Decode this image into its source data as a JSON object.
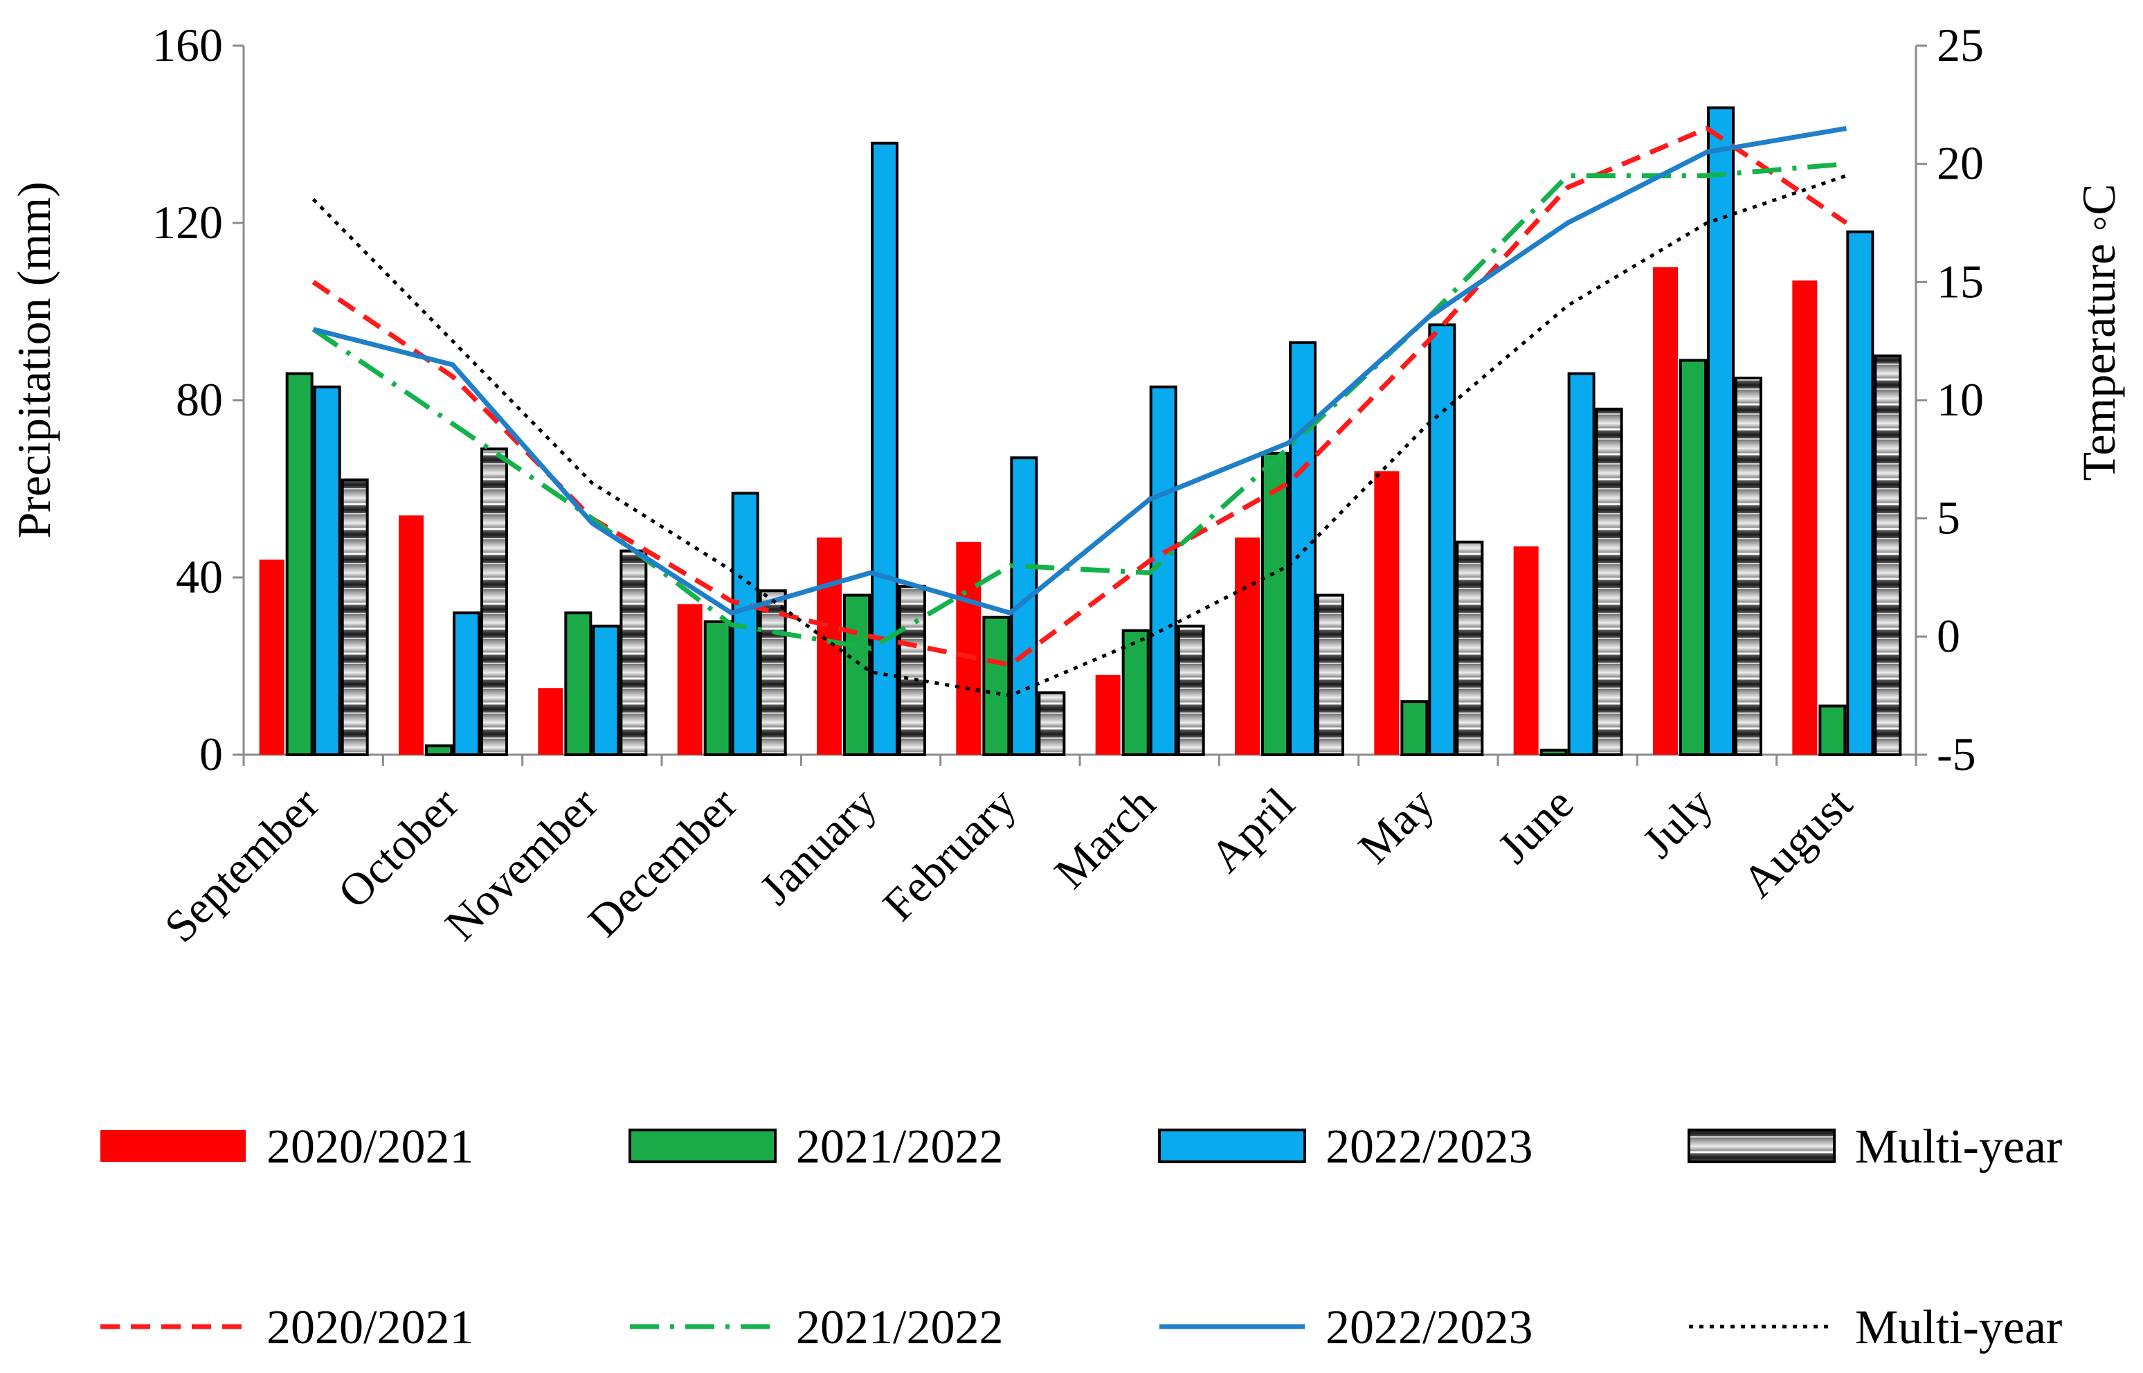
{
  "chart_data": {
    "type": "bar",
    "title": "",
    "xlabel": "",
    "categories": [
      "September",
      "October",
      "November",
      "December",
      "January",
      "February",
      "March",
      "April",
      "May",
      "June",
      "July",
      "August"
    ],
    "bar_axis": {
      "label": "Precipitation (mm)",
      "ylim": [
        0,
        160
      ],
      "ticks": [
        0,
        40,
        80,
        120,
        160
      ]
    },
    "line_axis": {
      "label": "Temperature ◦C",
      "ylim": [
        -5,
        25
      ],
      "ticks": [
        -5,
        0,
        5,
        10,
        15,
        20,
        25
      ]
    },
    "bar_series": [
      {
        "name": "2020/2021",
        "key": "b2020",
        "color": "#ff0000",
        "outlined": false,
        "pattern": false,
        "values": [
          44,
          54,
          15,
          34,
          49,
          48,
          18,
          49,
          64,
          47,
          110,
          107
        ]
      },
      {
        "name": "2021/2022",
        "key": "b2021",
        "color": "#1aab48",
        "outlined": true,
        "pattern": false,
        "values": [
          86,
          2,
          32,
          30,
          36,
          31,
          28,
          68,
          12,
          1,
          89,
          11
        ]
      },
      {
        "name": "2022/2023",
        "key": "b2022",
        "color": "#0aaaee",
        "outlined": true,
        "pattern": false,
        "values": [
          83,
          32,
          29,
          59,
          138,
          67,
          83,
          93,
          97,
          86,
          146,
          118
        ]
      },
      {
        "name": "Multi-year",
        "key": "bmulti",
        "color": "#9e9e9e",
        "outlined": true,
        "pattern": true,
        "values": [
          62,
          69,
          46,
          37,
          38,
          14,
          29,
          36,
          48,
          78,
          85,
          90
        ]
      }
    ],
    "line_series": [
      {
        "name": "2020/2021",
        "key": "l2020",
        "color": "#ff1a1a",
        "dash": "28,16",
        "values": [
          15.0,
          11.0,
          5.0,
          1.5,
          0.0,
          -1.2,
          3.2,
          6.5,
          12.5,
          19.0,
          21.5,
          17.5
        ]
      },
      {
        "name": "2021/2022",
        "key": "l2021",
        "color": "#13b24b",
        "dash": "42,16,6,16",
        "values": [
          13.0,
          9.0,
          5.0,
          0.5,
          -0.5,
          3.0,
          2.7,
          8.0,
          13.5,
          19.5,
          19.5,
          20.0
        ]
      },
      {
        "name": "2022/2023",
        "key": "l2022",
        "color": "#1f7fc8",
        "dash": "",
        "values": [
          13.0,
          11.5,
          4.8,
          1.0,
          2.7,
          1.0,
          5.8,
          8.2,
          13.5,
          17.5,
          20.5,
          21.5
        ]
      },
      {
        "name": "Multi-year",
        "key": "lmulti",
        "color": "#000000",
        "dash": "6,9",
        "values": [
          18.5,
          12.5,
          6.5,
          2.8,
          -1.5,
          -2.5,
          0.0,
          3.0,
          9.0,
          14.0,
          17.5,
          19.5
        ]
      }
    ],
    "legend": {
      "bars": [
        "2020/2021",
        "2021/2022",
        "2022/2023",
        "Multi-year"
      ],
      "lines": [
        "2020/2021",
        "2021/2022",
        "2022/2023",
        "Multi-year"
      ],
      "position": "bottom"
    }
  }
}
